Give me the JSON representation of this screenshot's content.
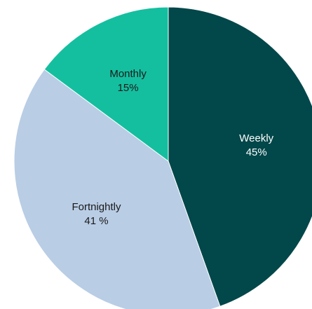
{
  "chart_data": {
    "type": "pie",
    "categories": [
      "Weekly",
      "Fortnightly",
      "Monthly"
    ],
    "values": [
      45,
      41,
      15
    ],
    "value_labels": [
      "45%",
      "41 %",
      "15%"
    ],
    "colors": [
      "#02474a",
      "#b9cde5",
      "#14bf9f"
    ],
    "label_colors": [
      "#ffffff",
      "#1a1a1a",
      "#1a1a1a"
    ]
  }
}
